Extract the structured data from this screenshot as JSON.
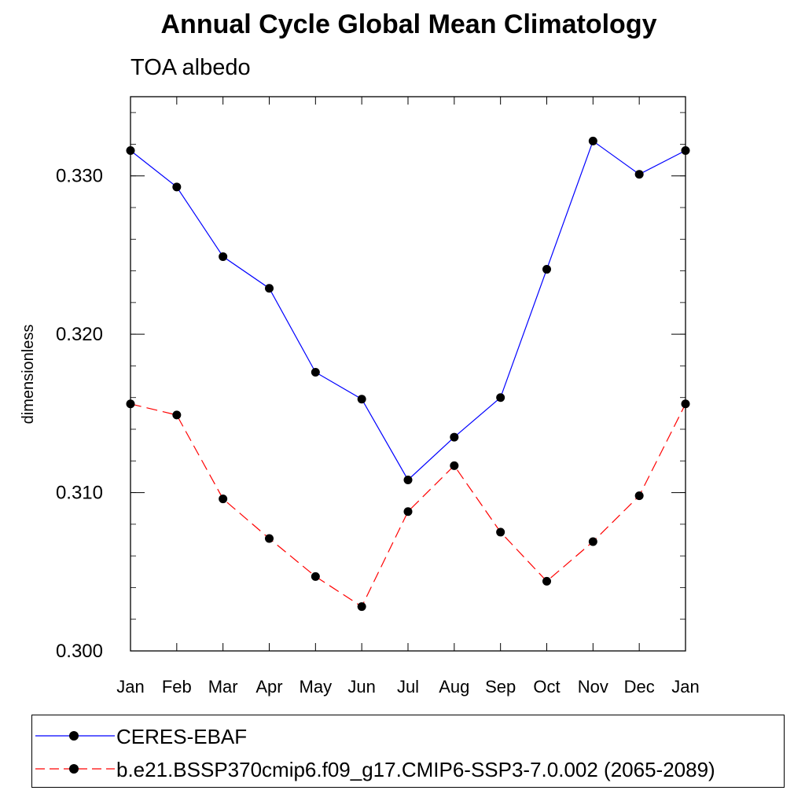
{
  "chart_data": {
    "type": "line",
    "title": "Annual Cycle Global Mean Climatology",
    "subtitle": "TOA albedo",
    "xlabel": "",
    "ylabel": "dimensionless",
    "categories": [
      "Jan",
      "Feb",
      "Mar",
      "Apr",
      "May",
      "Jun",
      "Jul",
      "Aug",
      "Sep",
      "Oct",
      "Nov",
      "Dec",
      "Jan"
    ],
    "ylim": [
      0.3,
      0.335
    ],
    "yticks": [
      0.3,
      0.31,
      0.32,
      0.33
    ],
    "ytick_labels": [
      "0.300",
      "0.310",
      "0.320",
      "0.330"
    ],
    "grid": false,
    "legend_position": "bottom",
    "series": [
      {
        "name": "CERES-EBAF",
        "color": "#0000ff",
        "line_style": "solid",
        "marker": "circle",
        "values": [
          0.3316,
          0.3293,
          0.3249,
          0.3229,
          0.3176,
          0.3159,
          0.3108,
          0.3135,
          0.316,
          0.3241,
          0.3322,
          0.3301,
          0.3316
        ]
      },
      {
        "name": "b.e21.BSSP370cmip6.f09_g17.CMIP6-SSP3-7.0.002 (2065-2089)",
        "color": "#ff0000",
        "line_style": "dashed",
        "marker": "circle",
        "values": [
          0.3156,
          0.3149,
          0.3096,
          0.3071,
          0.3047,
          0.3028,
          0.3088,
          0.3117,
          0.3075,
          0.3044,
          0.3069,
          0.3098,
          0.3156
        ]
      }
    ]
  }
}
